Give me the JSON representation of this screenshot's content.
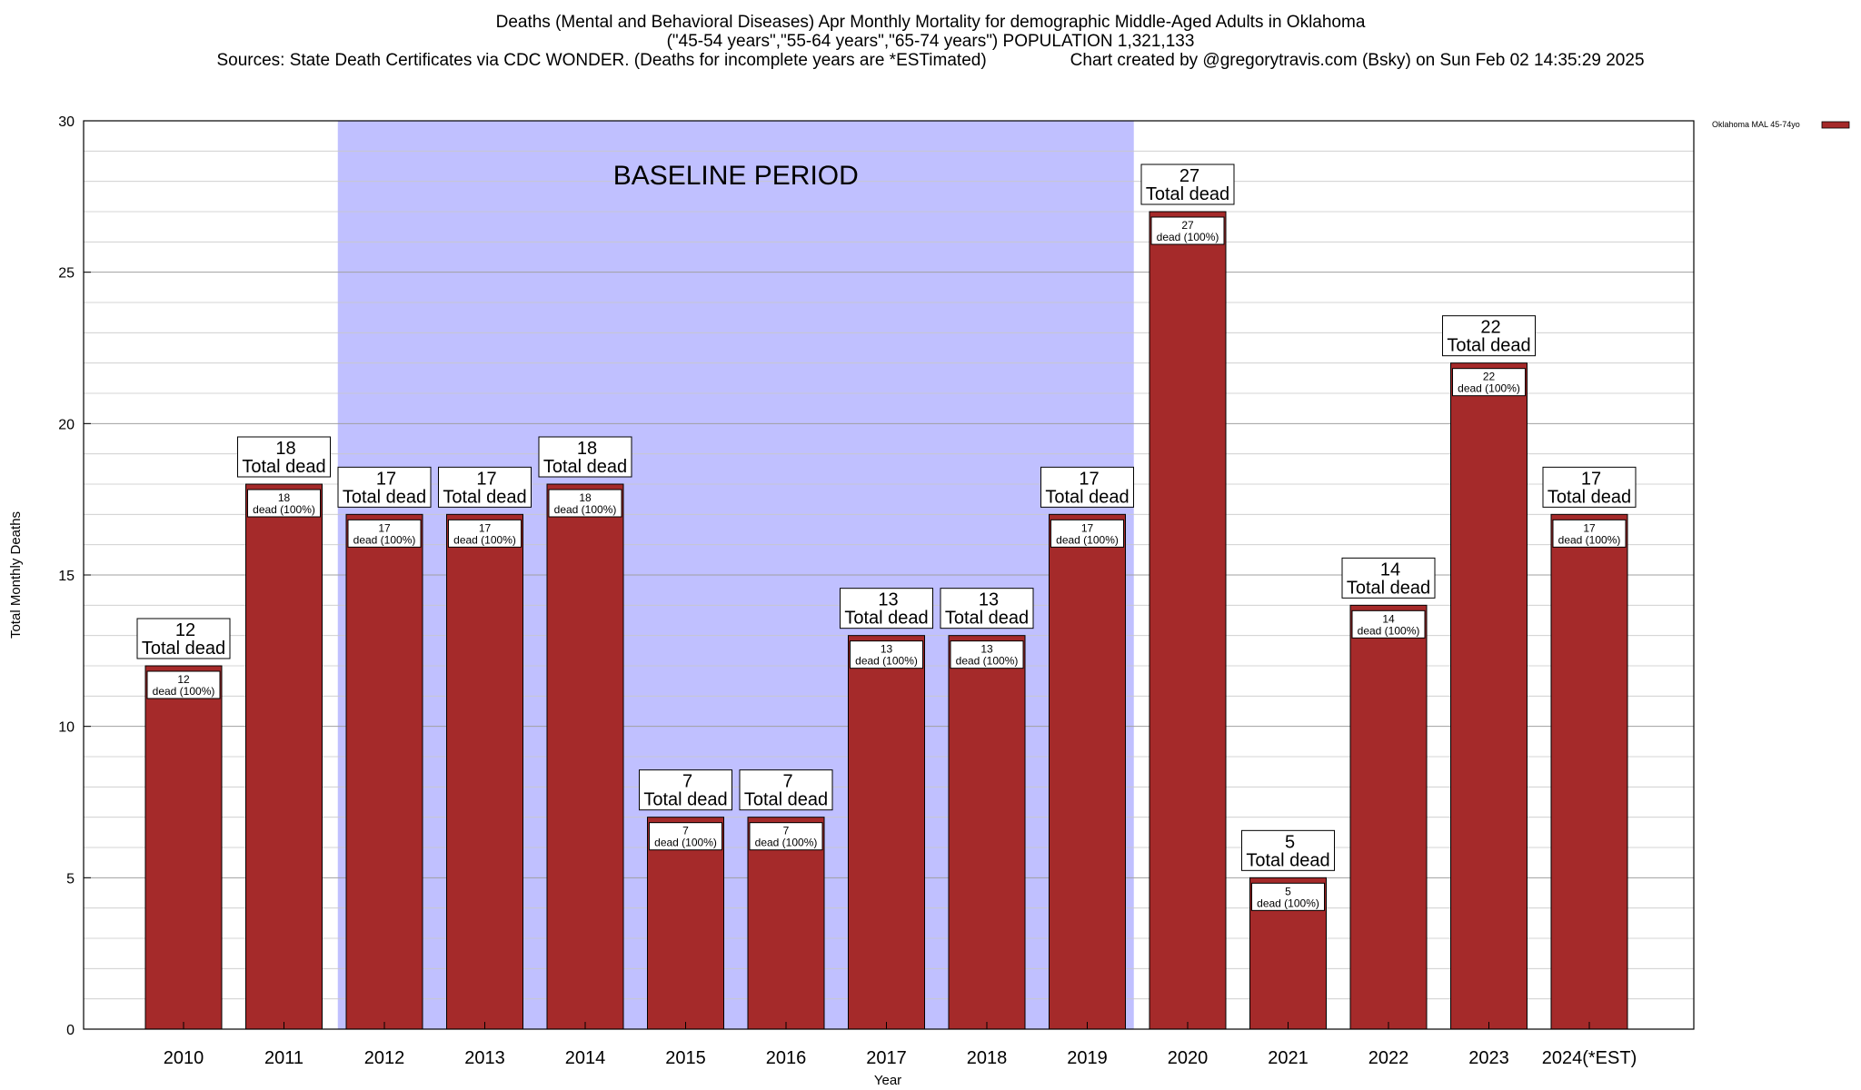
{
  "header": {
    "title_line1": "Deaths (Mental and Behavioral Diseases) Apr Monthly Mortality for demographic Middle-Aged Adults in Oklahoma",
    "title_line2": "(\"45-54 years\",\"55-64 years\",\"65-74 years\") POPULATION 1,321,133",
    "sources": "Sources: State Death Certificates via CDC WONDER. (Deaths for incomplete years are *ESTimated)",
    "credit": "Chart created by @gregorytravis.com (Bsky) on Sun Feb 02 14:35:29 2025"
  },
  "chart_data": {
    "type": "bar",
    "xlabel": "Year",
    "ylabel": "Total Monthly Deaths",
    "ylim": [
      0,
      30
    ],
    "yticks": [
      0,
      5,
      10,
      15,
      20,
      25,
      30
    ],
    "grid": true,
    "categories": [
      "2010",
      "2011",
      "2012",
      "2013",
      "2014",
      "2015",
      "2016",
      "2017",
      "2018",
      "2019",
      "2020",
      "2021",
      "2022",
      "2023",
      "2024(*EST)"
    ],
    "series": [
      {
        "name": "Oklahoma MAL 45-74yo",
        "color": "#a52a2a",
        "values": [
          12,
          18,
          17,
          17,
          18,
          7,
          7,
          13,
          13,
          17,
          27,
          5,
          14,
          22,
          17
        ]
      }
    ],
    "total_label": "Total dead",
    "inner_label": "dead (100%)",
    "baseline": {
      "label": "BASELINE PERIOD",
      "start": "2012",
      "end": "2019",
      "color": "#c0c0ff"
    },
    "legend_position": "top-right"
  }
}
